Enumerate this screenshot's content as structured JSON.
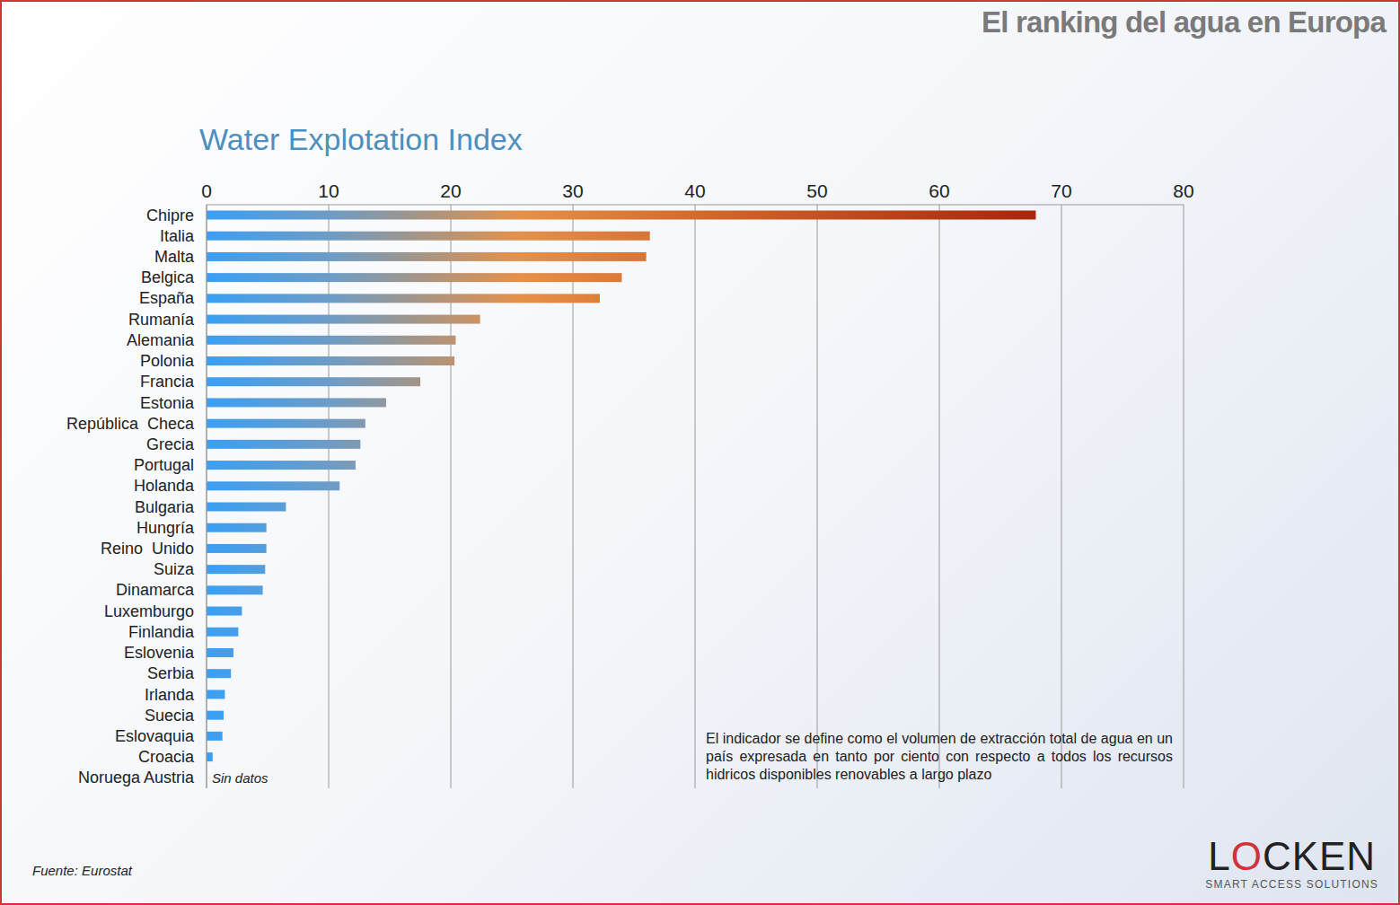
{
  "chart_data": {
    "type": "bar",
    "orientation": "horizontal",
    "header": "El ranking del agua en Europa",
    "title": "Water Explotation Index",
    "categories": [
      "Chipre",
      "Italia",
      "Malta",
      "Belgica",
      "España",
      "Rumanía",
      "Alemania",
      "Polonia",
      "Francia",
      "Estonia",
      "República  Checa",
      "Grecia",
      "Portugal",
      "Holanda",
      "Bulgaria",
      "Hungría",
      "Reino  Unido",
      "Suiza",
      "Dinamarca",
      "Luxemburgo",
      "Finlandia",
      "Eslovenia",
      "Serbia",
      "Irlanda",
      "Suecia",
      "Eslovaquia",
      "Croacia",
      "Noruega Austria"
    ],
    "values": [
      67.9,
      36.3,
      36.0,
      34.0,
      32.2,
      22.4,
      20.4,
      20.3,
      17.5,
      14.7,
      13.0,
      12.6,
      12.2,
      10.9,
      6.5,
      4.9,
      4.9,
      4.8,
      4.6,
      2.9,
      2.6,
      2.2,
      2.0,
      1.5,
      1.4,
      1.3,
      0.5,
      null
    ],
    "color": "#3a9ff5",
    "xlim": [
      0,
      80
    ],
    "xticks": [
      0,
      10,
      20,
      30,
      40,
      50,
      60,
      70,
      80
    ],
    "grid": true,
    "annotations": [
      {
        "category": "Noruega Austria",
        "text": "Sin datos"
      }
    ],
    "note": "El indicador se define como el volumen de extracción total de agua en un país expresada en tanto por ciento con respecto a todos los recursos hidricos disponibles renovables a largo plazo",
    "source": "Fuente: Eurostat",
    "logo": "LOCKEN",
    "logo_subtitle": "SMART ACCESS SOLUTIONS"
  }
}
